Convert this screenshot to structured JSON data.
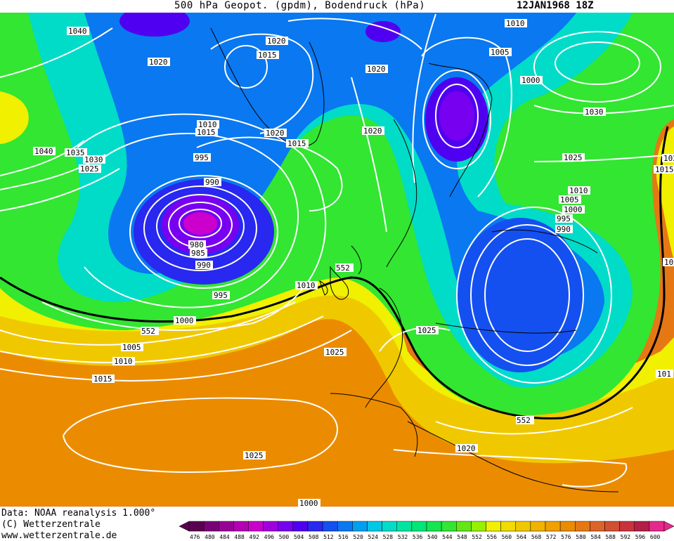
{
  "header": {
    "title": "500 hPa Geopot. (gpdm), Bodendruck (hPa)",
    "date": "12JAN1968 18Z"
  },
  "footer": {
    "line1": "Data: NOAA reanalysis 1.000°",
    "line2": "(C) Wetterzentrale",
    "line3": "www.wetterzentrale.de"
  },
  "legend": {
    "values": [
      "476",
      "480",
      "484",
      "488",
      "492",
      "496",
      "500",
      "504",
      "508",
      "512",
      "516",
      "520",
      "524",
      "528",
      "532",
      "536",
      "540",
      "544",
      "548",
      "552",
      "556",
      "560",
      "564",
      "568",
      "572",
      "576",
      "580",
      "584",
      "588",
      "592",
      "596",
      "600"
    ],
    "colors": [
      "#5a0050",
      "#7a0078",
      "#9a0098",
      "#b400b4",
      "#cc00cc",
      "#a000e0",
      "#7800f0",
      "#5000f0",
      "#2828f0",
      "#1450f0",
      "#0a78f0",
      "#00a0f0",
      "#00c8e6",
      "#00dcc8",
      "#00e6a0",
      "#00e678",
      "#14e650",
      "#32e632",
      "#64e614",
      "#96f000",
      "#f0f000",
      "#f0dc00",
      "#f0c800",
      "#f0b400",
      "#f0a000",
      "#eb8c00",
      "#e67814",
      "#dc6428",
      "#d25032",
      "#c8323c",
      "#b41e46",
      "#e6288c"
    ]
  },
  "map": {
    "pressure_labels": [
      "1040",
      "1020",
      "1015",
      "1020",
      "1010",
      "1015",
      "1020",
      "1010",
      "1005",
      "1000",
      "1020",
      "1015",
      "1020",
      "1030",
      "995",
      "990",
      "1040",
      "1035",
      "1030",
      "1025",
      "1015",
      "1025",
      "1010",
      "1005",
      "1000",
      "995",
      "990",
      "980",
      "985",
      "990",
      "552",
      "1010",
      "995",
      "1000",
      "552",
      "1005",
      "1010",
      "1015",
      "1025",
      "1025",
      "1020",
      "552",
      "1025",
      "1015",
      "1025",
      "102",
      "101",
      "101",
      "1000"
    ],
    "contour_552_label": "552"
  }
}
